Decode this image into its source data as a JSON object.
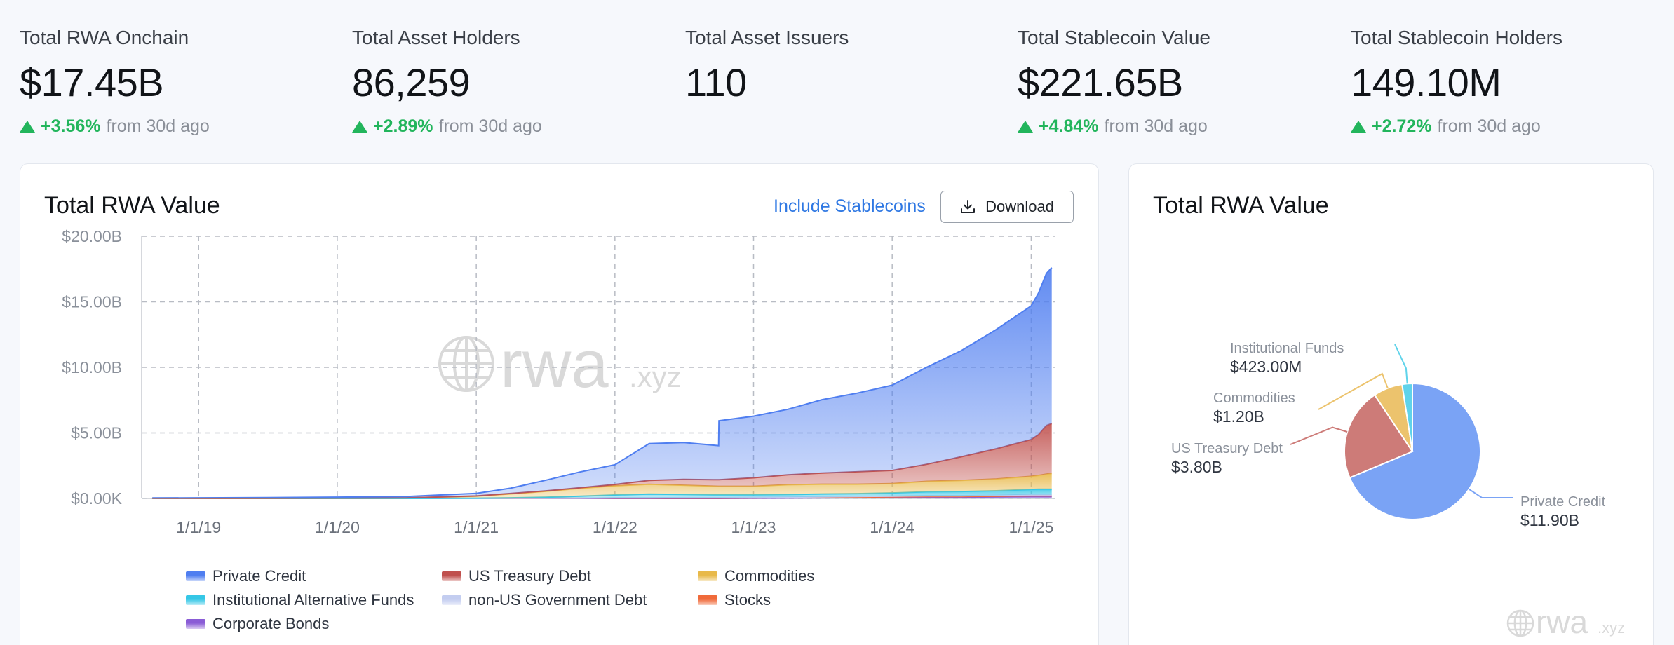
{
  "stats": [
    {
      "label": "Total RWA Onchain",
      "value": "$17.45B",
      "change": "+3.56%",
      "suffix": "from 30d ago"
    },
    {
      "label": "Total Asset Holders",
      "value": "86,259",
      "change": "+2.89%",
      "suffix": "from 30d ago"
    },
    {
      "label": "Total Asset Issuers",
      "value": "110",
      "change": "",
      "suffix": ""
    },
    {
      "label": "Total Stablecoin Value",
      "value": "$221.65B",
      "change": "+4.84%",
      "suffix": "from 30d ago"
    },
    {
      "label": "Total Stablecoin Holders",
      "value": "149.10M",
      "change": "+2.72%",
      "suffix": "from 30d ago"
    }
  ],
  "main_card": {
    "title": "Total RWA Value",
    "toggle_label": "Include Stablecoins",
    "download_label": "Download",
    "watermark": {
      "main": "rwa",
      "suffix": ".xyz"
    }
  },
  "side_card": {
    "title": "Total RWA Value",
    "watermark": {
      "main": "rwa",
      "suffix": ".xyz"
    }
  },
  "chart_data": [
    {
      "type": "area",
      "stacked": true,
      "title": "Total RWA Value",
      "x": [
        "2018-09-01",
        "2019-01-01",
        "2019-07-01",
        "2020-01-01",
        "2020-07-01",
        "2021-01-01",
        "2021-04-01",
        "2021-07-01",
        "2021-10-01",
        "2022-01-01",
        "2022-04-01",
        "2022-07-01",
        "2022-10-01",
        "2022-10-02",
        "2023-01-01",
        "2023-04-01",
        "2023-07-01",
        "2023-10-01",
        "2024-01-01",
        "2024-04-01",
        "2024-07-01",
        "2024-10-01",
        "2025-01-01",
        "2025-01-20",
        "2025-02-10",
        "2025-02-24"
      ],
      "ylim": [
        0,
        20
      ],
      "yunit": "B",
      "y_ticks": [
        "$0.00K",
        "$5.00B",
        "$10.00B",
        "$15.00B",
        "$20.00B"
      ],
      "x_ticks": [
        "1/1/19",
        "1/1/20",
        "1/1/21",
        "1/1/22",
        "1/1/23",
        "1/1/24",
        "1/1/25"
      ],
      "grid": true,
      "legend_position": "bottom",
      "series": [
        {
          "name": "Corporate Bonds",
          "color": "#8a5cd6",
          "values": [
            0,
            0,
            0,
            0,
            0,
            0,
            0,
            0,
            0,
            0,
            0,
            0,
            0,
            0,
            0.02,
            0.03,
            0.05,
            0.06,
            0.08,
            0.1,
            0.1,
            0.12,
            0.15,
            0.15,
            0.15,
            0.15
          ]
        },
        {
          "name": "Stocks",
          "color": "#f06a3a",
          "values": [
            0,
            0,
            0,
            0,
            0,
            0,
            0.01,
            0.01,
            0.02,
            0.03,
            0.03,
            0.03,
            0.03,
            0.03,
            0.03,
            0.03,
            0.03,
            0.04,
            0.04,
            0.05,
            0.05,
            0.05,
            0.06,
            0.06,
            0.06,
            0.06
          ]
        },
        {
          "name": "non-US Government Debt",
          "color": "#c3cdf0",
          "values": [
            0,
            0,
            0,
            0,
            0,
            0,
            0,
            0,
            0,
            0.02,
            0.02,
            0.03,
            0.03,
            0.03,
            0.03,
            0.04,
            0.04,
            0.05,
            0.05,
            0.06,
            0.06,
            0.07,
            0.08,
            0.08,
            0.08,
            0.08
          ]
        },
        {
          "name": "Institutional Alternative Funds",
          "color": "#35c7e6",
          "values": [
            0,
            0,
            0,
            0,
            0,
            0.02,
            0.04,
            0.08,
            0.15,
            0.22,
            0.28,
            0.25,
            0.22,
            0.22,
            0.2,
            0.2,
            0.22,
            0.22,
            0.25,
            0.3,
            0.32,
            0.35,
            0.4,
            0.42,
            0.42,
            0.42
          ]
        },
        {
          "name": "Commodities",
          "color": "#e8b94a",
          "values": [
            0.01,
            0.01,
            0.02,
            0.03,
            0.05,
            0.15,
            0.3,
            0.45,
            0.6,
            0.7,
            0.75,
            0.7,
            0.65,
            0.65,
            0.65,
            0.75,
            0.75,
            0.72,
            0.72,
            0.8,
            0.85,
            0.9,
            1.0,
            1.05,
            1.15,
            1.2
          ]
        },
        {
          "name": "US Treasury Debt",
          "color": "#c0504d",
          "values": [
            0,
            0,
            0,
            0,
            0,
            0.02,
            0.03,
            0.04,
            0.05,
            0.1,
            0.3,
            0.45,
            0.5,
            0.5,
            0.65,
            0.75,
            0.85,
            0.95,
            1.0,
            1.3,
            1.8,
            2.3,
            2.8,
            3.1,
            3.7,
            3.8
          ]
        },
        {
          "name": "Private Credit",
          "color": "#4f7ef0",
          "values": [
            0.03,
            0.04,
            0.05,
            0.07,
            0.1,
            0.2,
            0.4,
            0.8,
            1.2,
            1.5,
            2.8,
            2.8,
            2.6,
            4.5,
            4.7,
            5.0,
            5.6,
            6.0,
            6.5,
            7.4,
            8.1,
            9.1,
            10.2,
            10.8,
            11.6,
            11.9
          ]
        }
      ]
    },
    {
      "type": "pie",
      "title": "Total RWA Value",
      "slices": [
        {
          "label": "Private Credit",
          "value": 11.9,
          "display": "$11.90B",
          "color": "#7aa3f5"
        },
        {
          "label": "US Treasury Debt",
          "value": 3.8,
          "display": "$3.80B",
          "color": "#cd7b78"
        },
        {
          "label": "Commodities",
          "value": 1.2,
          "display": "$1.20B",
          "color": "#ecc36d"
        },
        {
          "label": "Institutional Funds",
          "value": 0.423,
          "display": "$423.00M",
          "color": "#5fd3ea"
        }
      ]
    }
  ]
}
